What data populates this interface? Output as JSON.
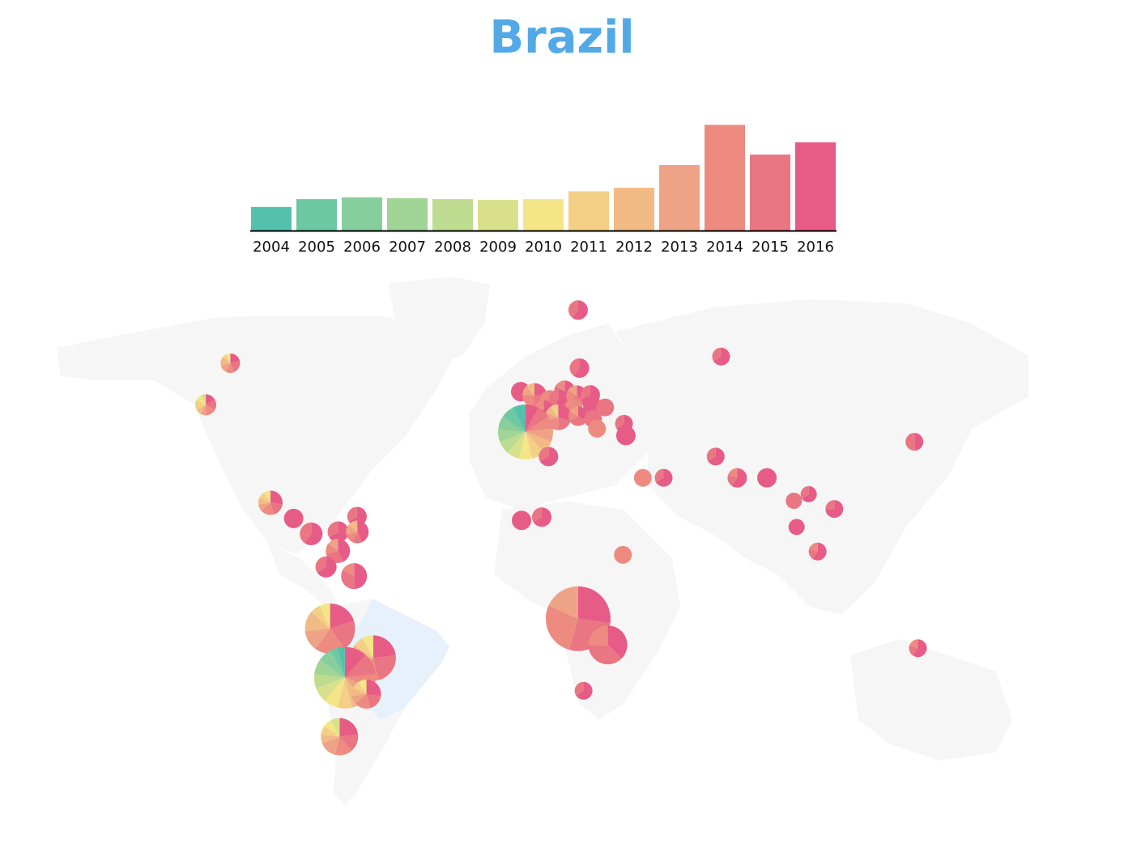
{
  "title": "Brazil",
  "colors": {
    "title": "#52a9e6",
    "years": [
      "#53c1ab",
      "#6dc9a3",
      "#87ce9d",
      "#a1d497",
      "#bedc90",
      "#d9e08b",
      "#f4e687",
      "#f4d086",
      "#f2ba85",
      "#efa386",
      "#ed8b81",
      "#e97682",
      "#e75c86"
    ],
    "brazil_fill": "#e6f1fb",
    "land_fill": "#f6f6f6"
  },
  "chart_data": {
    "type": "bar",
    "categories": [
      "2004",
      "2005",
      "2006",
      "2007",
      "2008",
      "2009",
      "2010",
      "2011",
      "2012",
      "2013",
      "2014",
      "2015",
      "2016"
    ],
    "values": [
      27,
      36,
      38,
      37,
      36,
      35,
      36,
      45,
      49,
      75,
      121,
      87,
      101
    ],
    "ylim": [
      0,
      125
    ],
    "title": "",
    "xlabel": "",
    "ylabel": ""
  },
  "map_data": {
    "type": "pie-on-map",
    "highlighted_country": "Brazil",
    "pies": [
      {
        "lon": -114,
        "lat": 62,
        "r": 12,
        "values": [
          3,
          3,
          2,
          2,
          2,
          1,
          1
        ]
      },
      {
        "lon": -123.1,
        "lat": 49.3,
        "r": 13,
        "values": [
          2,
          2,
          2,
          1,
          1,
          2,
          1,
          1
        ]
      },
      {
        "lon": -99.1,
        "lat": 19.4,
        "r": 15,
        "values": [
          3,
          2,
          2,
          1,
          1,
          1,
          1
        ]
      },
      {
        "lon": -90.5,
        "lat": 14.6,
        "r": 12,
        "values": [
          1
        ]
      },
      {
        "lon": -84,
        "lat": 9.9,
        "r": 14,
        "values": [
          3,
          2
        ]
      },
      {
        "lon": -74,
        "lat": 10.5,
        "r": 13,
        "values": [
          2,
          1
        ]
      },
      {
        "lon": -67,
        "lat": 15.2,
        "r": 12,
        "values": [
          2,
          1
        ]
      },
      {
        "lon": -66.9,
        "lat": 10.5,
        "r": 14,
        "values": [
          3,
          1,
          1,
          1,
          1
        ]
      },
      {
        "lon": -74.1,
        "lat": 4.7,
        "r": 15,
        "values": [
          3,
          2,
          1,
          1
        ]
      },
      {
        "lon": -78.5,
        "lat": -0.2,
        "r": 13,
        "values": [
          2,
          1
        ]
      },
      {
        "lon": -68.1,
        "lat": -3,
        "r": 16,
        "values": [
          3,
          2,
          1
        ]
      },
      {
        "lon": -77,
        "lat": -19,
        "r": 31,
        "values": [
          3,
          3,
          3,
          2,
          2,
          1,
          1
        ]
      },
      {
        "lon": -61,
        "lat": -28,
        "r": 28,
        "values": [
          3,
          3,
          2,
          2,
          1,
          1,
          1
        ]
      },
      {
        "lon": -71.5,
        "lat": -34,
        "r": 38,
        "values": [
          3,
          3,
          2,
          2,
          2,
          2,
          2,
          2,
          2,
          2,
          2,
          1,
          1
        ]
      },
      {
        "lon": -63.5,
        "lat": -39,
        "r": 18,
        "values": [
          3,
          2,
          2,
          1,
          1,
          1,
          1
        ]
      },
      {
        "lon": -73.5,
        "lat": -52,
        "r": 23,
        "values": [
          3,
          2,
          2,
          2,
          1,
          1,
          1,
          1
        ]
      },
      {
        "lon": 15,
        "lat": 78.2,
        "r": 12,
        "values": [
          3,
          2
        ]
      },
      {
        "lon": 15.5,
        "lat": 60.5,
        "r": 12,
        "values": [
          3,
          2
        ]
      },
      {
        "lon": -6.3,
        "lat": 53.3,
        "r": 12,
        "values": [
          1
        ]
      },
      {
        "lon": -1.2,
        "lat": 52.2,
        "r": 15,
        "values": [
          2,
          2,
          2,
          1,
          1
        ]
      },
      {
        "lon": 4.5,
        "lat": 50.8,
        "r": 12,
        "values": [
          1
        ]
      },
      {
        "lon": 10,
        "lat": 53.5,
        "r": 13,
        "values": [
          3,
          2,
          1
        ]
      },
      {
        "lon": 7.8,
        "lat": 51,
        "r": 12,
        "values": [
          3,
          2
        ]
      },
      {
        "lon": 14.5,
        "lat": 52,
        "r": 13,
        "values": [
          2,
          2,
          1,
          1
        ]
      },
      {
        "lon": 19.5,
        "lat": 52.3,
        "r": 12,
        "values": [
          2,
          1
        ]
      },
      {
        "lon": 2.3,
        "lat": 47.8,
        "r": 12,
        "values": [
          3,
          1,
          1
        ]
      },
      {
        "lon": 13.3,
        "lat": 48.5,
        "r": 11,
        "values": [
          1
        ]
      },
      {
        "lon": 20,
        "lat": 49.5,
        "r": 11,
        "values": [
          1
        ]
      },
      {
        "lon": 25,
        "lat": 48.5,
        "r": 11,
        "values": [
          1
        ]
      },
      {
        "lon": 7.6,
        "lat": 45.5,
        "r": 16,
        "values": [
          3,
          2,
          2,
          1,
          1,
          1
        ]
      },
      {
        "lon": 15,
        "lat": 45.8,
        "r": 12,
        "values": [
          2,
          2,
          1,
          1
        ]
      },
      {
        "lon": 20.5,
        "lat": 45,
        "r": 11,
        "values": [
          1
        ]
      },
      {
        "lon": 22,
        "lat": 42,
        "r": 11,
        "values": [
          1
        ]
      },
      {
        "lon": -10.5,
        "lat": 42.5,
        "r": 12,
        "values": [
          2,
          1
        ]
      },
      {
        "lon": -4.5,
        "lat": 41,
        "r": 34,
        "values": [
          2,
          2,
          2,
          2,
          2,
          2,
          2,
          2,
          2,
          2,
          2,
          2,
          2
        ]
      },
      {
        "lon": 32,
        "lat": 43.5,
        "r": 11,
        "values": [
          2,
          1
        ]
      },
      {
        "lon": 32.7,
        "lat": 39.9,
        "r": 12,
        "values": [
          1
        ]
      },
      {
        "lon": 4,
        "lat": 33.5,
        "r": 12,
        "values": [
          2,
          1
        ]
      },
      {
        "lon": 39,
        "lat": 27,
        "r": 11,
        "values": [
          1
        ]
      },
      {
        "lon": 46.7,
        "lat": 27,
        "r": 11,
        "values": [
          2,
          1
        ]
      },
      {
        "lon": 66,
        "lat": 33.5,
        "r": 11,
        "values": [
          2,
          1
        ]
      },
      {
        "lon": 74,
        "lat": 27,
        "r": 12,
        "values": [
          3,
          1,
          1
        ]
      },
      {
        "lon": 85,
        "lat": 27,
        "r": 12,
        "values": [
          1
        ]
      },
      {
        "lon": 95,
        "lat": 20,
        "r": 10,
        "values": [
          1
        ]
      },
      {
        "lon": 100.5,
        "lat": 22,
        "r": 10,
        "values": [
          2,
          1
        ]
      },
      {
        "lon": 96,
        "lat": 12,
        "r": 10,
        "values": [
          1
        ]
      },
      {
        "lon": 110,
        "lat": 17.5,
        "r": 11,
        "values": [
          3,
          1
        ]
      },
      {
        "lon": 103.8,
        "lat": 4.5,
        "r": 11,
        "values": [
          3,
          1,
          1
        ]
      },
      {
        "lon": 68,
        "lat": 64,
        "r": 11,
        "values": [
          2,
          1
        ]
      },
      {
        "lon": 139.7,
        "lat": 38,
        "r": 11,
        "values": [
          2,
          2
        ]
      },
      {
        "lon": 141,
        "lat": -25,
        "r": 11,
        "values": [
          3,
          1,
          1
        ]
      },
      {
        "lon": -6,
        "lat": 14,
        "r": 12,
        "values": [
          1
        ]
      },
      {
        "lon": 1.5,
        "lat": 15,
        "r": 12,
        "values": [
          2,
          1
        ]
      },
      {
        "lon": 31.6,
        "lat": 3.5,
        "r": 11,
        "values": [
          1
        ]
      },
      {
        "lon": 15,
        "lat": -16,
        "r": 40,
        "values": [
          3,
          3,
          3,
          2
        ]
      },
      {
        "lon": 26,
        "lat": -24,
        "r": 24,
        "values": [
          3,
          3,
          2
        ]
      },
      {
        "lon": 17,
        "lat": -38,
        "r": 11,
        "values": [
          2,
          1
        ]
      }
    ]
  }
}
